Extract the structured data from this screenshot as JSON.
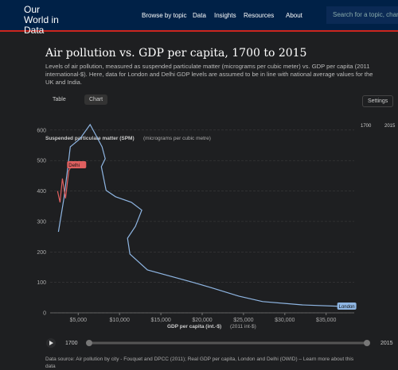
{
  "nav": {
    "logo": "Our World in Data",
    "links": [
      "Browse by topic",
      "Data",
      "Insights",
      "Resources",
      "About"
    ],
    "search": "Search for a topic, chart, or"
  },
  "tabs": [
    "Table",
    "Chart"
  ],
  "settings": "Settings",
  "chart_data": {
    "type": "line",
    "title": "Air pollution vs. GDP per capita, 1700 to 2015",
    "subtitle": "Levels of air pollution, measured as suspended particulate matter (micrograms per cubic meter) vs. GDP per capita (2011 international-$). Here, data for London and Delhi GDP levels are assumed to be in line with national average values for the UK and India.",
    "y_label": "Suspended particulate matter (SPM)",
    "y_unit": "(micrograms per cubic metre)",
    "x_label": "GDP per capita (int.-$)",
    "x_unit": "(2011 int-$)",
    "xlim": [
      1600,
      38400
    ],
    "ylim": [
      0,
      610
    ],
    "xticks": [
      {
        "value": 5000,
        "label": "$5,000"
      },
      {
        "value": 10000,
        "label": "$10,000"
      },
      {
        "value": 15000,
        "label": "$15,000"
      },
      {
        "value": 20000,
        "label": "$20,000"
      },
      {
        "value": 25000,
        "label": "$25,000"
      },
      {
        "value": 30000,
        "label": "$30,000"
      },
      {
        "value": 35000,
        "label": "$35,000"
      }
    ],
    "yticks": [
      0,
      100,
      200,
      300,
      400,
      500,
      600
    ],
    "grid": true,
    "series": [
      {
        "name": "London",
        "color": "#8fb6e3",
        "x": [
          2600,
          3270,
          3750,
          4040,
          5190,
          6440,
          7120,
          7880,
          8270,
          7790,
          8370,
          9520,
          11440,
          12690,
          11920,
          10960,
          11250,
          13370,
          18650,
          21060,
          24420,
          27310,
          32120,
          36920
        ],
        "values": [
          266,
          376,
          480,
          545,
          571,
          618,
          584,
          545,
          506,
          480,
          402,
          381,
          363,
          337,
          284,
          245,
          193,
          141,
          102,
          83,
          55,
          37,
          26,
          21
        ]
      },
      {
        "name": "Delhi",
        "color": "#e06060",
        "x": [
          2500,
          2790,
          3080,
          3460,
          3850,
          4230
        ],
        "values": [
          400,
          363,
          441,
          376,
          467,
          485
        ]
      }
    ],
    "timeline": [
      1700,
      2015
    ]
  },
  "source": "Data source: Air pollution by city - Fouquet and DPCC (2011); Real GDP per capita, London and Delhi (OWID) – Learn more about this data"
}
